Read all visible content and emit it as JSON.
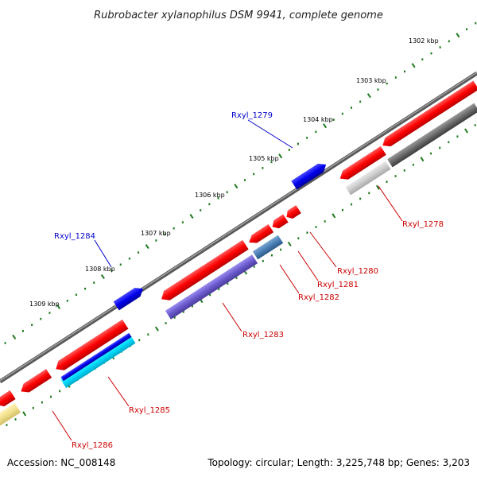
{
  "header": {
    "title": "Rubrobacter xylanophilus DSM 9941, complete genome"
  },
  "footer": {
    "accession": "Accession: NC_008148",
    "topology": "Topology: circular; Length: 3,225,748 bp; Genes: 3,203"
  },
  "scale": {
    "marks": [
      {
        "label": "1302 kbp"
      },
      {
        "label": "1303 kbp"
      },
      {
        "label": "1304 kbp"
      },
      {
        "label": "1305 kbp"
      },
      {
        "label": "1306 kbp"
      },
      {
        "label": "1307 kbp"
      },
      {
        "label": "1308 kbp"
      },
      {
        "label": "1309 kbp"
      }
    ]
  },
  "colors": {
    "background": "#ffffff",
    "backbone": "#777777",
    "tick": "#1e7a1e",
    "gene_red": "#ff0000",
    "gene_blue": "#0000ee",
    "label_red": "#cc0000",
    "label_blue": "#0000cc"
  },
  "genes": [
    {
      "name": "Rxyl_1278",
      "color": "#cc0000"
    },
    {
      "name": "Rxyl_1279",
      "color": "#0000cc"
    },
    {
      "name": "Rxyl_1280",
      "color": "#cc0000"
    },
    {
      "name": "Rxyl_1281",
      "color": "#cc0000"
    },
    {
      "name": "Rxyl_1282",
      "color": "#cc0000"
    },
    {
      "name": "Rxyl_1283",
      "color": "#cc0000"
    },
    {
      "name": "Rxyl_1284",
      "color": "#0000cc"
    },
    {
      "name": "Rxyl_1285",
      "color": "#cc0000"
    },
    {
      "name": "Rxyl_1286",
      "color": "#cc0000"
    }
  ]
}
